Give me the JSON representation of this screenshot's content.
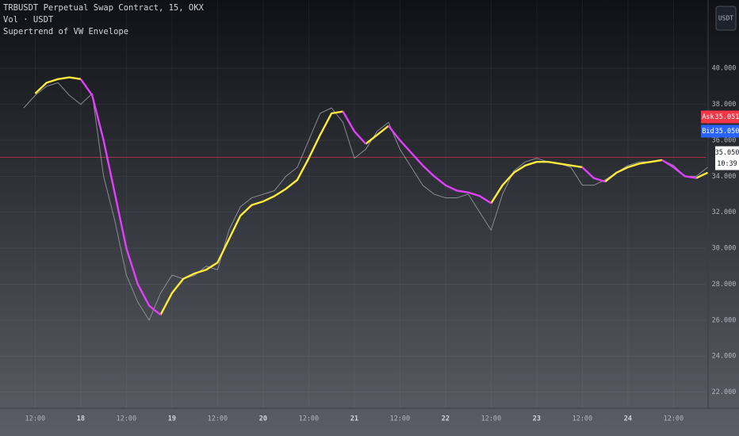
{
  "chart_data": {
    "type": "line",
    "legend_lines": [
      "TRBUSDT Perpetual Swap Contract, 15, OKX",
      "Vol · USDT",
      "Supertrend of VW Envelope"
    ],
    "currency_button": "USDT",
    "categories": [
      null,
      "12:00",
      null,
      null,
      null,
      "18",
      null,
      null,
      null,
      "12:00",
      null,
      null,
      null,
      "19",
      null,
      null,
      null,
      "12:00",
      null,
      null,
      null,
      "20",
      null,
      null,
      null,
      "12:00",
      null,
      null,
      null,
      "21",
      null,
      null,
      null,
      "12:00",
      null,
      null,
      null,
      "22",
      null,
      null,
      null,
      "12:00",
      null,
      null,
      null,
      "23",
      null,
      null,
      null,
      "12:00",
      null,
      null,
      null,
      "24",
      null,
      null,
      null,
      "12:00",
      null,
      null,
      null
    ],
    "series": [
      {
        "color": "#9a9ca3",
        "values": [
          37.8,
          38.5,
          39.0,
          39.2,
          38.5,
          38.0,
          38.6,
          34.0,
          31.5,
          28.5,
          27.0,
          26.0,
          27.5,
          28.5,
          28.3,
          28.5,
          29.0,
          28.8,
          31.0,
          32.3,
          32.8,
          33.0,
          33.2,
          34.0,
          34.5,
          36.0,
          37.5,
          37.8,
          37.0,
          35.0,
          35.5,
          36.5,
          37.0,
          35.5,
          34.5,
          33.5,
          33.0,
          32.8,
          32.8,
          33.0,
          32.0,
          31.0,
          33.0,
          34.3,
          34.8,
          35.0,
          34.8,
          34.7,
          34.5,
          33.5,
          33.5,
          33.8,
          34.2,
          34.6,
          34.8,
          34.8,
          34.9,
          34.6,
          34.0,
          34.0,
          34.5
        ]
      },
      {
        "color": "#ffeb3b",
        "values": [
          null,
          38.6,
          39.2,
          39.4,
          39.5,
          39.4,
          null,
          null,
          null,
          null,
          null,
          null,
          26.3,
          27.5,
          28.3,
          28.6,
          28.8,
          29.2,
          30.5,
          31.8,
          32.4,
          32.6,
          32.9,
          33.3,
          33.8,
          35.0,
          36.3,
          37.5,
          37.6,
          null,
          35.8,
          36.3,
          36.8,
          null,
          null,
          null,
          null,
          null,
          null,
          null,
          null,
          32.5,
          33.5,
          34.2,
          34.6,
          34.8,
          34.8,
          34.7,
          34.6,
          34.5,
          null,
          33.7,
          34.2,
          34.5,
          34.7,
          34.8,
          34.9,
          null,
          null,
          33.9,
          34.2
        ]
      },
      {
        "color": "#e040fb",
        "values": [
          null,
          null,
          null,
          null,
          null,
          39.4,
          38.5,
          36.0,
          33.0,
          30.0,
          28.0,
          26.8,
          26.3,
          null,
          null,
          null,
          null,
          null,
          null,
          null,
          null,
          null,
          null,
          null,
          null,
          null,
          null,
          null,
          37.6,
          36.5,
          35.8,
          null,
          36.8,
          36.0,
          35.3,
          34.6,
          34.0,
          33.5,
          33.2,
          33.1,
          32.9,
          32.5,
          null,
          null,
          null,
          null,
          null,
          null,
          null,
          34.5,
          33.9,
          33.7,
          null,
          null,
          null,
          null,
          34.9,
          34.5,
          34.0,
          33.9,
          null
        ]
      }
    ],
    "ylim": [
      21.1,
      43.8
    ],
    "yticks": [
      {
        "value": 22,
        "label": "22.000"
      },
      {
        "value": 24,
        "label": "24.000"
      },
      {
        "value": 26,
        "label": "26.000"
      },
      {
        "value": 28,
        "label": "28.000"
      },
      {
        "value": 30,
        "label": "30.000"
      },
      {
        "value": 32,
        "label": "32.000"
      },
      {
        "value": 34,
        "label": "34.000"
      },
      {
        "value": 36,
        "label": "36.000"
      },
      {
        "value": 38,
        "label": "38.000"
      },
      {
        "value": 40,
        "label": "40.000"
      }
    ],
    "grid": true,
    "last_price": {
      "value": 35.05,
      "label": "35.050",
      "color": "#f23645"
    },
    "ask": {
      "label": "Ask",
      "price": "35.051",
      "color": "#f23645"
    },
    "bid": {
      "label": "Bid",
      "price": "35.050",
      "color": "#2962ff"
    },
    "countdown": "10:39"
  }
}
